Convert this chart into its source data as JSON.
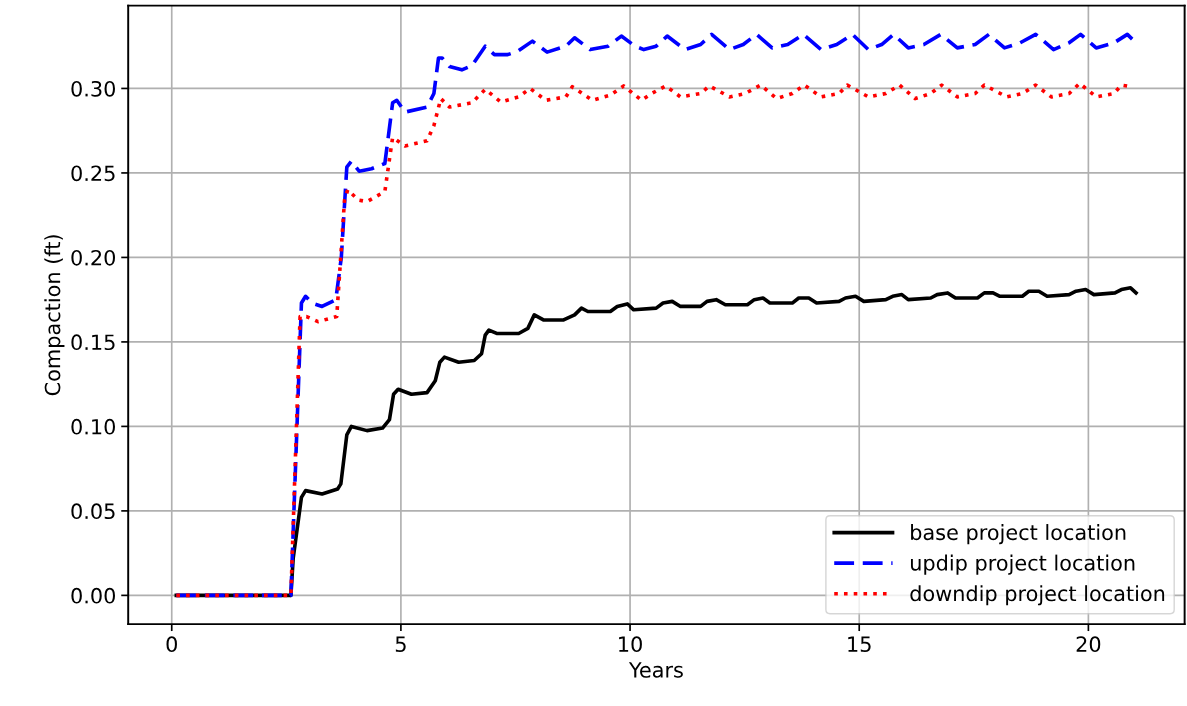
{
  "chart_data": {
    "type": "line",
    "xlabel": "Years",
    "ylabel": "Compaction (ft)",
    "xlim": [
      -0.95,
      22.1
    ],
    "ylim": [
      -0.017,
      0.349
    ],
    "xticks": [
      0,
      5,
      10,
      15,
      20
    ],
    "yticks": [
      {
        "value": 0,
        "label": "0.00"
      },
      {
        "value": 0.05,
        "label": "0.05"
      },
      {
        "value": 0.1,
        "label": "0.10"
      },
      {
        "value": 0.15,
        "label": "0.15"
      },
      {
        "value": 0.2,
        "label": "0.20"
      },
      {
        "value": 0.25,
        "label": "0.25"
      },
      {
        "value": 0.3,
        "label": "0.30"
      }
    ],
    "grid": true,
    "legend": "bottom right",
    "series": [
      {
        "name": "base project location",
        "color": "#000000",
        "line_style": "solid",
        "x": [
          0.1,
          1.5,
          2.6,
          2.65,
          2.83,
          2.92,
          3.28,
          3.62,
          3.69,
          3.82,
          3.92,
          4.26,
          4.6,
          4.75,
          4.84,
          4.94,
          5.23,
          5.57,
          5.75,
          5.85,
          5.95,
          6.26,
          6.6,
          6.76,
          6.84,
          6.92,
          7.09,
          7.57,
          7.77,
          7.91,
          8.11,
          8.55,
          8.79,
          8.94,
          9.08,
          9.57,
          9.72,
          9.94,
          10.08,
          10.57,
          10.72,
          10.92,
          11.1,
          11.54,
          11.68,
          11.88,
          12.08,
          12.56,
          12.71,
          12.9,
          13.05,
          13.54,
          13.68,
          13.9,
          14.07,
          14.56,
          14.7,
          14.92,
          15.1,
          15.58,
          15.73,
          15.93,
          16.07,
          16.56,
          16.7,
          16.93,
          17.1,
          17.58,
          17.73,
          17.92,
          18.07,
          18.56,
          18.7,
          18.92,
          19.1,
          19.58,
          19.73,
          19.94,
          20.12,
          20.58,
          20.72,
          20.92,
          21.04
        ],
        "values": [
          0,
          0,
          0,
          0.022,
          0.058,
          0.062,
          0.06,
          0.063,
          0.066,
          0.095,
          0.1,
          0.0975,
          0.099,
          0.104,
          0.119,
          0.122,
          0.119,
          0.12,
          0.127,
          0.138,
          0.141,
          0.138,
          0.139,
          0.143,
          0.154,
          0.157,
          0.155,
          0.155,
          0.158,
          0.166,
          0.163,
          0.163,
          0.166,
          0.17,
          0.168,
          0.168,
          0.171,
          0.1725,
          0.169,
          0.17,
          0.173,
          0.174,
          0.171,
          0.171,
          0.174,
          0.175,
          0.172,
          0.172,
          0.175,
          0.176,
          0.173,
          0.173,
          0.176,
          0.176,
          0.173,
          0.174,
          0.176,
          0.177,
          0.174,
          0.175,
          0.177,
          0.178,
          0.175,
          0.176,
          0.178,
          0.179,
          0.176,
          0.176,
          0.179,
          0.179,
          0.177,
          0.177,
          0.18,
          0.18,
          0.177,
          0.178,
          0.18,
          0.181,
          0.178,
          0.179,
          0.181,
          0.182,
          0.179
        ]
      },
      {
        "name": "updip project location",
        "color": "#0000ff",
        "line_style": "dashed",
        "x": [
          0.1,
          1.5,
          2.6,
          2.83,
          2.92,
          3.06,
          3.28,
          3.58,
          3.7,
          3.82,
          3.92,
          4.09,
          4.36,
          4.65,
          4.82,
          4.91,
          5.09,
          5.57,
          5.72,
          5.82,
          5.9,
          6.06,
          6.33,
          6.55,
          6.84,
          7.04,
          7.33,
          7.55,
          7.87,
          8.19,
          8.6,
          8.79,
          9.13,
          9.52,
          9.81,
          10.11,
          10.3,
          10.57,
          10.81,
          11.2,
          11.54,
          11.78,
          12.17,
          12.47,
          12.76,
          13.1,
          13.44,
          13.78,
          14.17,
          14.51,
          14.85,
          15.2,
          15.49,
          15.75,
          16.07,
          16.41,
          16.78,
          17.14,
          17.53,
          17.83,
          18.17,
          18.51,
          18.85,
          19.24,
          19.58,
          19.83,
          20.17,
          20.56,
          20.85,
          21.04
        ],
        "values": [
          0,
          0,
          0,
          0.173,
          0.177,
          0.173,
          0.171,
          0.175,
          0.2,
          0.2535,
          0.257,
          0.251,
          0.2525,
          0.2556,
          0.2915,
          0.293,
          0.286,
          0.289,
          0.297,
          0.318,
          0.318,
          0.313,
          0.311,
          0.3135,
          0.325,
          0.32,
          0.32,
          0.322,
          0.328,
          0.3215,
          0.325,
          0.33,
          0.323,
          0.325,
          0.331,
          0.325,
          0.323,
          0.325,
          0.331,
          0.323,
          0.326,
          0.332,
          0.323,
          0.326,
          0.332,
          0.324,
          0.326,
          0.332,
          0.323,
          0.326,
          0.332,
          0.323,
          0.326,
          0.332,
          0.324,
          0.326,
          0.332,
          0.324,
          0.326,
          0.332,
          0.324,
          0.327,
          0.332,
          0.323,
          0.327,
          0.332,
          0.324,
          0.327,
          0.332,
          0.327
        ]
      },
      {
        "name": "downdip project location",
        "color": "#ff0000",
        "line_style": "dotted",
        "x": [
          0.1,
          1.5,
          2.6,
          2.8,
          2.94,
          3.19,
          3.6,
          3.77,
          3.84,
          4.07,
          4.26,
          4.65,
          4.75,
          4.82,
          5.09,
          5.57,
          5.72,
          5.87,
          6.06,
          6.55,
          6.84,
          7.18,
          7.57,
          7.82,
          8.16,
          8.6,
          8.74,
          9.18,
          9.57,
          9.86,
          10.25,
          10.47,
          10.78,
          11.1,
          11.54,
          11.73,
          12.17,
          12.51,
          12.85,
          13.2,
          13.54,
          13.8,
          14.17,
          14.56,
          14.74,
          15.2,
          15.58,
          15.88,
          16.22,
          16.56,
          16.8,
          17.14,
          17.53,
          17.73,
          18.22,
          18.56,
          18.85,
          19.19,
          19.58,
          19.81,
          20.17,
          20.56,
          20.72,
          20.95
        ],
        "values": [
          0,
          0,
          0,
          0.165,
          0.165,
          0.162,
          0.165,
          0.234,
          0.24,
          0.234,
          0.233,
          0.239,
          0.258,
          0.271,
          0.266,
          0.269,
          0.278,
          0.294,
          0.289,
          0.2915,
          0.2995,
          0.292,
          0.295,
          0.3,
          0.293,
          0.295,
          0.301,
          0.293,
          0.296,
          0.3015,
          0.293,
          0.297,
          0.3015,
          0.295,
          0.297,
          0.3015,
          0.295,
          0.297,
          0.302,
          0.294,
          0.297,
          0.302,
          0.295,
          0.297,
          0.302,
          0.295,
          0.297,
          0.302,
          0.294,
          0.297,
          0.302,
          0.295,
          0.297,
          0.302,
          0.295,
          0.297,
          0.302,
          0.295,
          0.297,
          0.303,
          0.295,
          0.297,
          0.302,
          0.301
        ]
      }
    ]
  }
}
